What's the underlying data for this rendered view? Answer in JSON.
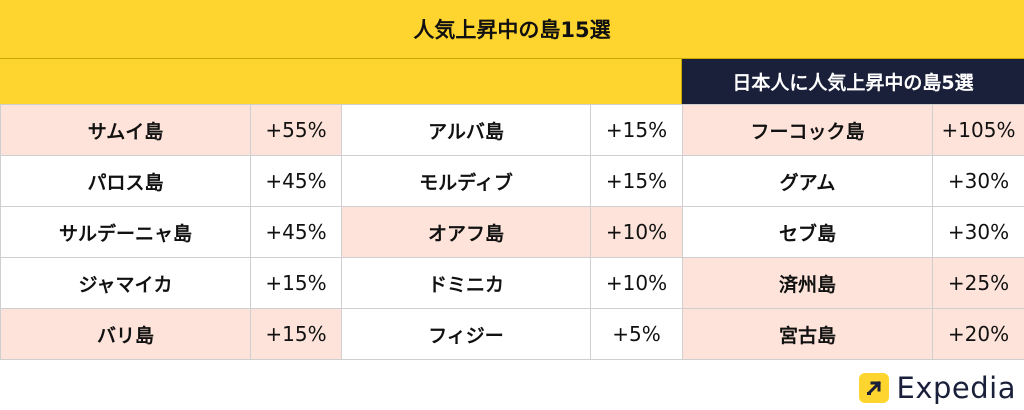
{
  "title": "人気上昇中の島15選",
  "subtitle_right": "日本人に人気上昇中の島5選",
  "colors": {
    "yellow": "#fed52e",
    "navy": "#1a1f3a",
    "highlight": "#fde3d9"
  },
  "rows": [
    [
      {
        "name": "サムイ島",
        "pct": "+55%",
        "hl": true
      },
      {
        "name": "アルバ島",
        "pct": "+15%",
        "hl": false
      },
      {
        "name": "フーコック島",
        "pct": "+105%",
        "hl": true
      }
    ],
    [
      {
        "name": "パロス島",
        "pct": "+45%",
        "hl": false
      },
      {
        "name": "モルディブ",
        "pct": "+15%",
        "hl": false
      },
      {
        "name": "グアム",
        "pct": "+30%",
        "hl": false
      }
    ],
    [
      {
        "name": "サルデーニャ島",
        "pct": "+45%",
        "hl": false
      },
      {
        "name": "オアフ島",
        "pct": "+10%",
        "hl": true
      },
      {
        "name": "セブ島",
        "pct": "+30%",
        "hl": false
      }
    ],
    [
      {
        "name": "ジャマイカ",
        "pct": "+15%",
        "hl": false
      },
      {
        "name": "ドミニカ",
        "pct": "+10%",
        "hl": false
      },
      {
        "name": "済州島",
        "pct": "+25%",
        "hl": true
      }
    ],
    [
      {
        "name": "バリ島",
        "pct": "+15%",
        "hl": true
      },
      {
        "name": "フィジー",
        "pct": "+5%",
        "hl": false
      },
      {
        "name": "宮古島",
        "pct": "+20%",
        "hl": true
      }
    ]
  ],
  "logo": {
    "text": "Expedia",
    "icon": "expedia-arrow-icon"
  }
}
